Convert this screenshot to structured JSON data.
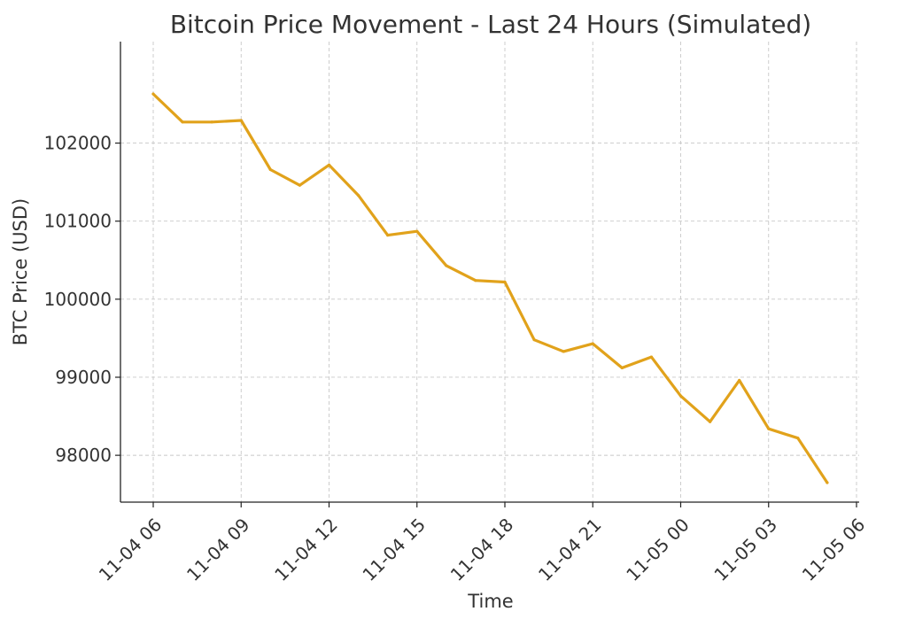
{
  "chart_data": {
    "type": "line",
    "title": "Bitcoin Price Movement - Last 24 Hours (Simulated)",
    "xlabel": "Time",
    "ylabel": "BTC Price (USD)",
    "x_ticks": [
      "11-04 06",
      "11-04 09",
      "11-04 12",
      "11-04 15",
      "11-04 18",
      "11-04 21",
      "11-05 00",
      "11-05 03",
      "11-05 06"
    ],
    "y_ticks": [
      98000,
      99000,
      100000,
      101000,
      102000
    ],
    "ylim": [
      97400,
      103300
    ],
    "grid": true,
    "color": "#e1a21b",
    "series": [
      {
        "x": [
          "11-04 06:00",
          "11-04 07:00",
          "11-04 08:00",
          "11-04 09:00",
          "11-04 10:00",
          "11-04 11:00",
          "11-04 12:00",
          "11-04 13:00",
          "11-04 14:00",
          "11-04 15:00",
          "11-04 16:00",
          "11-04 17:00",
          "11-04 18:00",
          "11-04 19:00",
          "11-04 20:00",
          "11-04 21:00",
          "11-04 22:00",
          "11-04 23:00",
          "11-05 00:00",
          "11-05 01:00",
          "11-05 02:00",
          "11-05 03:00",
          "11-05 04:00",
          "11-05 05:00"
        ],
        "values": [
          102630,
          102270,
          102270,
          102290,
          101660,
          101460,
          101720,
          101330,
          100820,
          100870,
          100430,
          100240,
          100220,
          99480,
          99330,
          99430,
          99120,
          99260,
          98760,
          98430,
          98960,
          98340,
          98220,
          97650
        ]
      }
    ]
  }
}
